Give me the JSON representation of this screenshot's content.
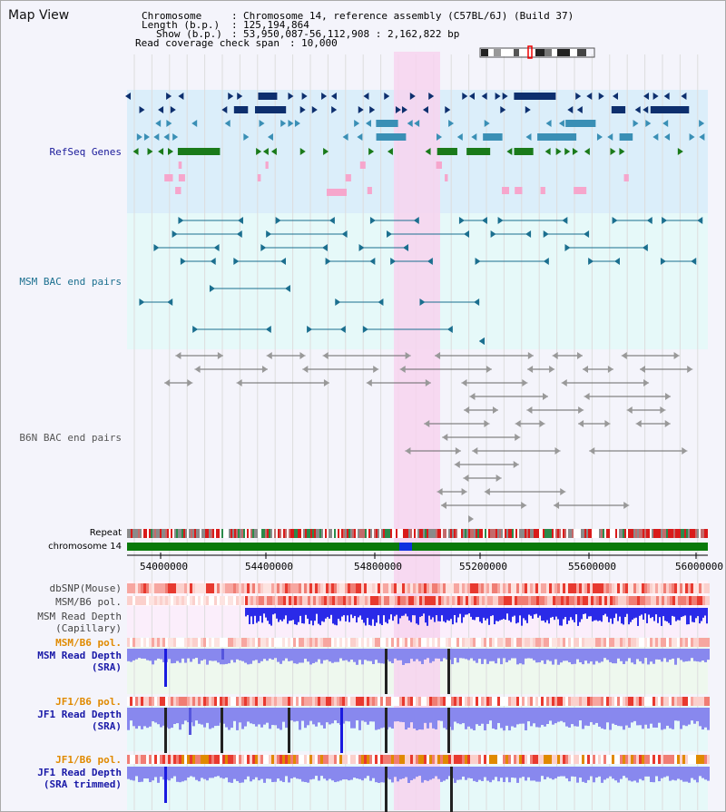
{
  "page": {
    "title": "Map View"
  },
  "info": {
    "chromosome_label": "Chromosome",
    "chromosome_value": "Chromosome 14, reference assembly (C57BL/6J) (Build 37)",
    "length_label": "Length (b.p.)",
    "length_value": "125,194,864",
    "show_label": "Show (b.p.)",
    "show_value": "53,950,087-56,112,908 : 2,162,822 bp",
    "coverage_label": "Read coverage check span",
    "coverage_value": "10,000"
  },
  "tracks": {
    "refseq": "RefSeq Genes",
    "msm_bac": "MSM BAC end pairs",
    "b6n_bac": "B6N BAC end pairs",
    "repeat": "Repeat",
    "chromosome": "chromosome 14",
    "dbsnp": "dbSNP(Mouse)",
    "msm_b6_pol_1": "MSM/B6 pol.",
    "msm_read_cap_1": "MSM Read Depth",
    "msm_read_cap_2": "(Capillary)",
    "msm_b6_pol_2": "MSM/B6 pol.",
    "msm_read_sra_1": "MSM Read Depth",
    "msm_read_sra_2": "(SRA)",
    "jf1_b6_pol_1": "JF1/B6 pol.",
    "jf1_read_sra_1": "JF1 Read Depth",
    "jf1_read_sra_2": "(SRA)",
    "jf1_b6_pol_2": "JF1/B6 pol.",
    "jf1_read_trim_1": "JF1 Read Depth",
    "jf1_read_trim_2": "(SRA trimmed)"
  },
  "axis": {
    "ticks": [
      "54000000",
      "54400000",
      "54800000",
      "55200000",
      "55600000",
      "56000000"
    ]
  },
  "colors": {
    "refseq_dark": "#0d2f6e",
    "refseq_mid": "#3a8fb5",
    "refseq_green": "#1a7a1a",
    "msm_bac": "#1b6f8f",
    "b6n_bac": "#666666",
    "highlight": "#f7d4ee",
    "chrom_green": "#0a7a0a",
    "chrom_marker": "#1030e0",
    "depth_blue": "#2a2ae8",
    "snp_red": "#e8392f",
    "pol_orange": "#e08a00"
  }
}
